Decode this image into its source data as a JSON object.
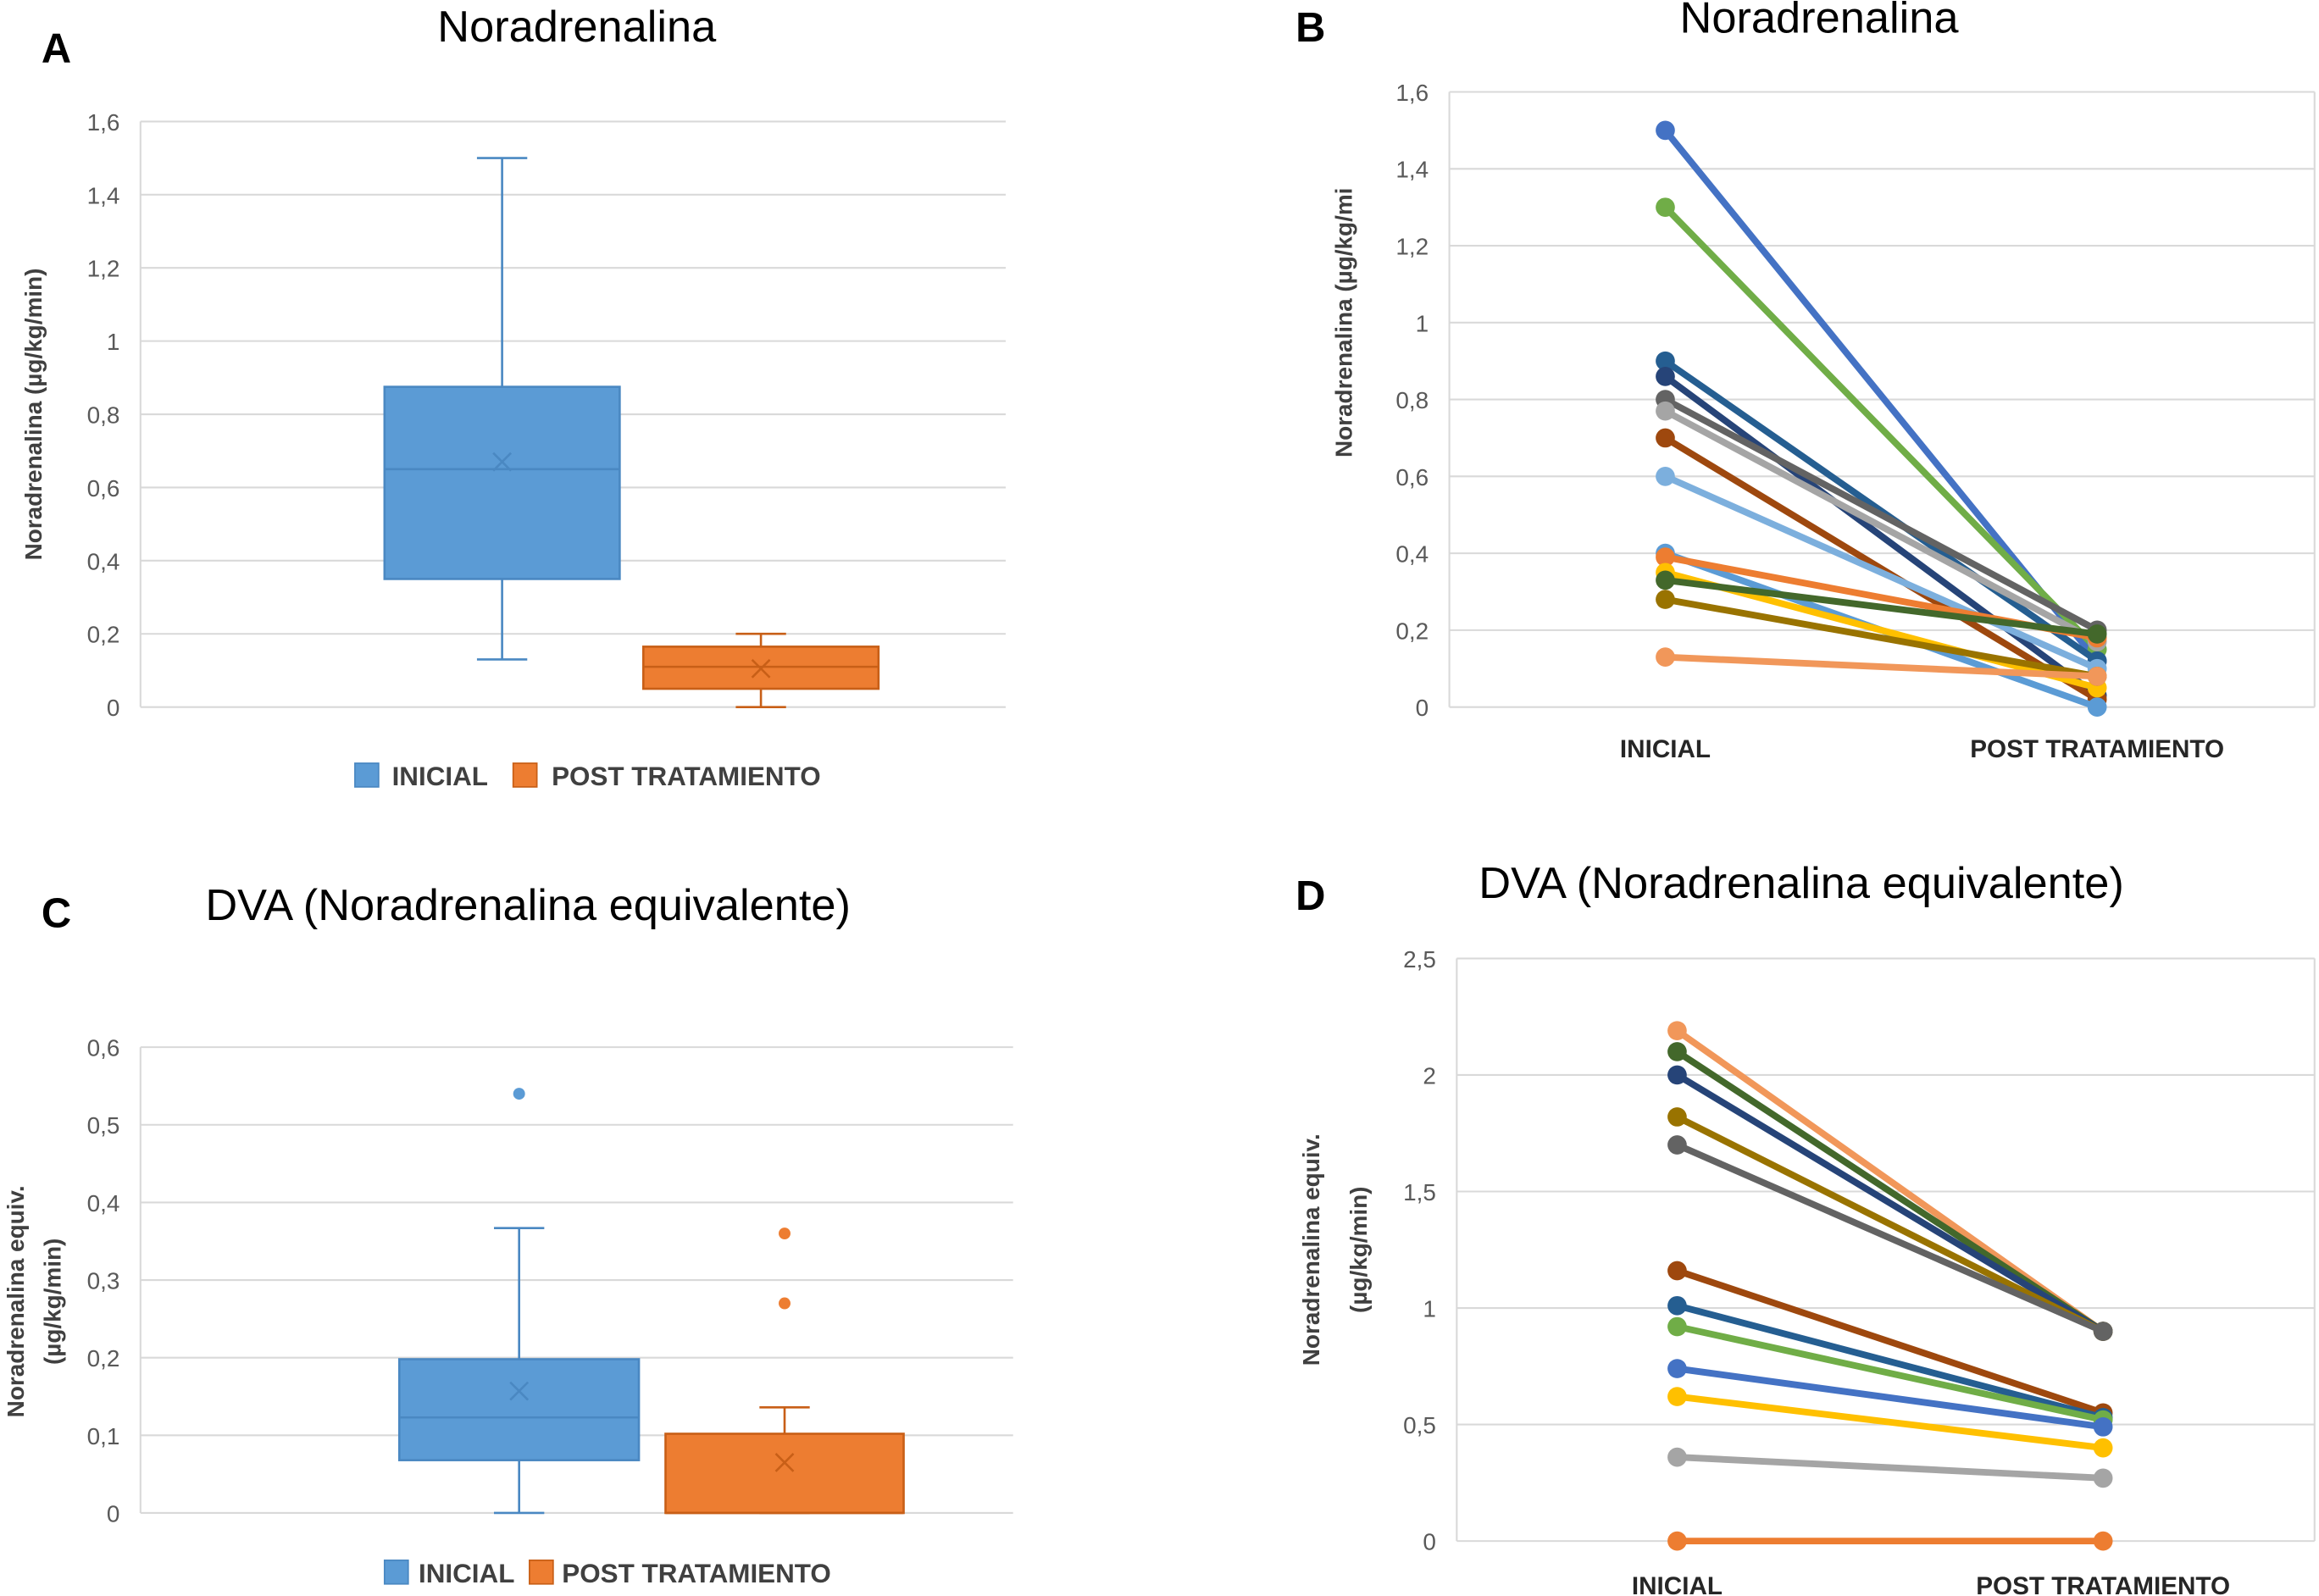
{
  "chart_data": [
    {
      "panel": "A",
      "type": "box",
      "title": "Noradrenalina",
      "ylabel": "Noradrenalina  (µg/kg/min)",
      "ylim": [
        0,
        1.6
      ],
      "yticks": [
        "0",
        "0,2",
        "0,4",
        "0,6",
        "0,8",
        "1",
        "1,2",
        "1,4",
        "1,6"
      ],
      "grid": true,
      "legend_position": "bottom",
      "series": [
        {
          "name": "INICIAL",
          "color": "#5B9BD5",
          "stroke": "#4A88C2",
          "min": 0.13,
          "q1": 0.35,
          "median": 0.65,
          "q3": 0.875,
          "max": 1.5,
          "mean": 0.67,
          "outliers": []
        },
        {
          "name": "POST TRATAMIENTO",
          "color": "#ED7D31",
          "stroke": "#C85F17",
          "min": 0,
          "q1": 0.05,
          "median": 0.11,
          "q3": 0.165,
          "max": 0.2,
          "mean": 0.105,
          "outliers": []
        }
      ]
    },
    {
      "panel": "B",
      "type": "line",
      "title": "Noradrenalina",
      "ylabel": "Noradrenalina  (µg/kg/mi",
      "ylim": [
        0,
        1.6
      ],
      "yticks": [
        "0",
        "0,2",
        "0,4",
        "0,6",
        "0,8",
        "1",
        "1,2",
        "1,4",
        "1,6"
      ],
      "categories": [
        "INICIAL",
        "POST TRATAMIENTO"
      ],
      "grid": true,
      "series": [
        {
          "color": "#4472C4",
          "values": [
            1.5,
            0.12
          ]
        },
        {
          "color": "#70AD47",
          "values": [
            1.3,
            0.15
          ]
        },
        {
          "color": "#255E91",
          "values": [
            0.9,
            0.12
          ]
        },
        {
          "color": "#264478",
          "values": [
            0.86,
            0.03
          ]
        },
        {
          "color": "#636363",
          "values": [
            0.8,
            0.2
          ]
        },
        {
          "color": "#A5A5A5",
          "values": [
            0.77,
            0.17
          ]
        },
        {
          "color": "#9E480E",
          "values": [
            0.7,
            0.02
          ]
        },
        {
          "color": "#7CAFDD",
          "values": [
            0.6,
            0.1
          ]
        },
        {
          "color": "#5B9BD5",
          "values": [
            0.4,
            0.0
          ]
        },
        {
          "color": "#ED7D31",
          "values": [
            0.39,
            0.18
          ]
        },
        {
          "color": "#FFC000",
          "values": [
            0.35,
            0.05
          ]
        },
        {
          "color": "#43682B",
          "values": [
            0.33,
            0.19
          ]
        },
        {
          "color": "#997300",
          "values": [
            0.28,
            0.08
          ]
        },
        {
          "color": "#F1975A",
          "values": [
            0.13,
            0.08
          ]
        }
      ]
    },
    {
      "panel": "C",
      "type": "box",
      "title": "DVA (Noradrenalina equivalente)",
      "ylabel": [
        "Noradrenalina equiv.",
        "(µg/kg/min)"
      ],
      "ylim": [
        0,
        0.6
      ],
      "yticks": [
        "0",
        "0,1",
        "0,2",
        "0,3",
        "0,4",
        "0,5",
        "0,6"
      ],
      "grid": true,
      "legend_position": "bottom",
      "series": [
        {
          "name": "INICIAL",
          "color": "#5B9BD5",
          "stroke": "#4A88C2",
          "min": 0,
          "q1": 0.068,
          "median": 0.123,
          "q3": 0.198,
          "max": 0.367,
          "mean": 0.157,
          "outliers": [
            0.54
          ]
        },
        {
          "name": "POST TRATAMIENTO",
          "color": "#ED7D31",
          "stroke": "#C85F17",
          "min": 0,
          "q1": 0,
          "median": 0,
          "q3": 0.102,
          "max": 0.136,
          "mean": 0.065,
          "outliers": [
            0.36,
            0.27
          ]
        }
      ]
    },
    {
      "panel": "D",
      "type": "line",
      "title": "DVA (Noradrenalina equivalente)",
      "ylabel": [
        "Noradrenalina equiv.",
        "(µg/kg/min)"
      ],
      "ylim": [
        0,
        2.5
      ],
      "yticks": [
        "0",
        "0,5",
        "1",
        "1,5",
        "2",
        "2,5"
      ],
      "categories": [
        "INICIAL",
        "POST TRATAMIENTO"
      ],
      "grid": true,
      "series": [
        {
          "color": "#F1975A",
          "values": [
            2.19,
            0.9
          ]
        },
        {
          "color": "#43682B",
          "values": [
            2.1,
            0.9
          ]
        },
        {
          "color": "#264478",
          "values": [
            2.0,
            0.9
          ]
        },
        {
          "color": "#997300",
          "values": [
            1.82,
            0.9
          ]
        },
        {
          "color": "#636363",
          "values": [
            1.7,
            0.9
          ]
        },
        {
          "color": "#9E480E",
          "values": [
            1.16,
            0.55
          ]
        },
        {
          "color": "#255E91",
          "values": [
            1.01,
            0.53
          ]
        },
        {
          "color": "#70AD47",
          "values": [
            0.92,
            0.52
          ]
        },
        {
          "color": "#4472C4",
          "values": [
            0.74,
            0.49
          ]
        },
        {
          "color": "#FFC000",
          "values": [
            0.62,
            0.4
          ]
        },
        {
          "color": "#A5A5A5",
          "values": [
            0.36,
            0.27
          ]
        },
        {
          "color": "#ED7D31",
          "values": [
            0.0,
            0.0
          ]
        }
      ]
    }
  ]
}
